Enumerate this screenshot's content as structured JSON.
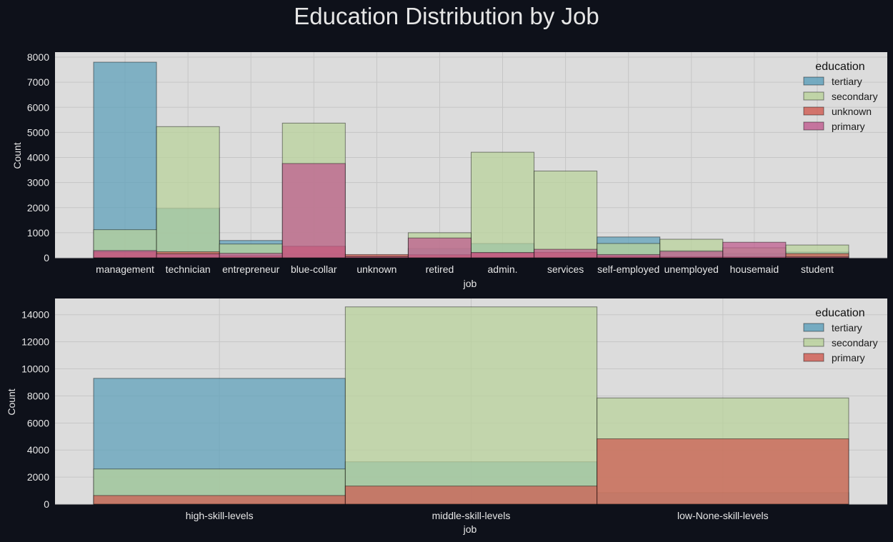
{
  "figure": {
    "title": "Education Distribution by Job"
  },
  "colors": {
    "figure_bg": "#0e111a",
    "axes_bg": "#dcdcdc",
    "grid": "#c6c6c6",
    "tick_text": "#e6e6e6",
    "legend_text": "#1a1a1a",
    "tertiary": "#5b9fba",
    "secondary": "#b9d29a",
    "unknown": "#cf5a50",
    "primary": "#bf5a8e"
  },
  "chart_data": [
    {
      "type": "bar",
      "stacking": "overlay",
      "xlabel": "job",
      "ylabel": "Count",
      "ylim": [
        0,
        8200
      ],
      "yticks": [
        0,
        1000,
        2000,
        3000,
        4000,
        5000,
        6000,
        7000,
        8000
      ],
      "grid": true,
      "legend": {
        "title": "education",
        "position": "top-right"
      },
      "categories": [
        "management",
        "technician",
        "entrepreneur",
        "blue-collar",
        "unknown",
        "retired",
        "admin.",
        "services",
        "self-employed",
        "unemployed",
        "housemaid",
        "student"
      ],
      "series": [
        {
          "name": "tertiary",
          "color": "#5b9fba",
          "values": [
            7800,
            1970,
            690,
            150,
            40,
            370,
            570,
            200,
            830,
            290,
            170,
            230
          ]
        },
        {
          "name": "secondary",
          "color": "#b9d29a",
          "values": [
            1120,
            5230,
            550,
            5370,
            70,
            1000,
            4210,
            3460,
            570,
            740,
            400,
            510
          ]
        },
        {
          "name": "unknown",
          "color": "#cf5a50",
          "values": [
            240,
            240,
            80,
            460,
            130,
            120,
            200,
            220,
            70,
            40,
            40,
            170
          ]
        },
        {
          "name": "primary",
          "color": "#bf5a8e",
          "values": [
            290,
            160,
            180,
            3760,
            50,
            790,
            210,
            340,
            130,
            260,
            620,
            40
          ]
        }
      ]
    },
    {
      "type": "bar",
      "stacking": "overlay",
      "xlabel": "job",
      "ylabel": "Count",
      "ylim": [
        0,
        15200
      ],
      "yticks": [
        0,
        2000,
        4000,
        6000,
        8000,
        10000,
        12000,
        14000
      ],
      "grid": true,
      "legend": {
        "title": "education",
        "position": "top-right"
      },
      "categories": [
        "high-skill-levels",
        "middle-skill-levels",
        "low-None-skill-levels"
      ],
      "series": [
        {
          "name": "tertiary",
          "color": "#5b9fba",
          "values": [
            9300,
            3130,
            850
          ]
        },
        {
          "name": "secondary",
          "color": "#b9d29a",
          "values": [
            2600,
            14580,
            7850
          ]
        },
        {
          "name": "primary",
          "color": "#cf5a50",
          "values": [
            640,
            1340,
            4830
          ]
        }
      ]
    }
  ]
}
